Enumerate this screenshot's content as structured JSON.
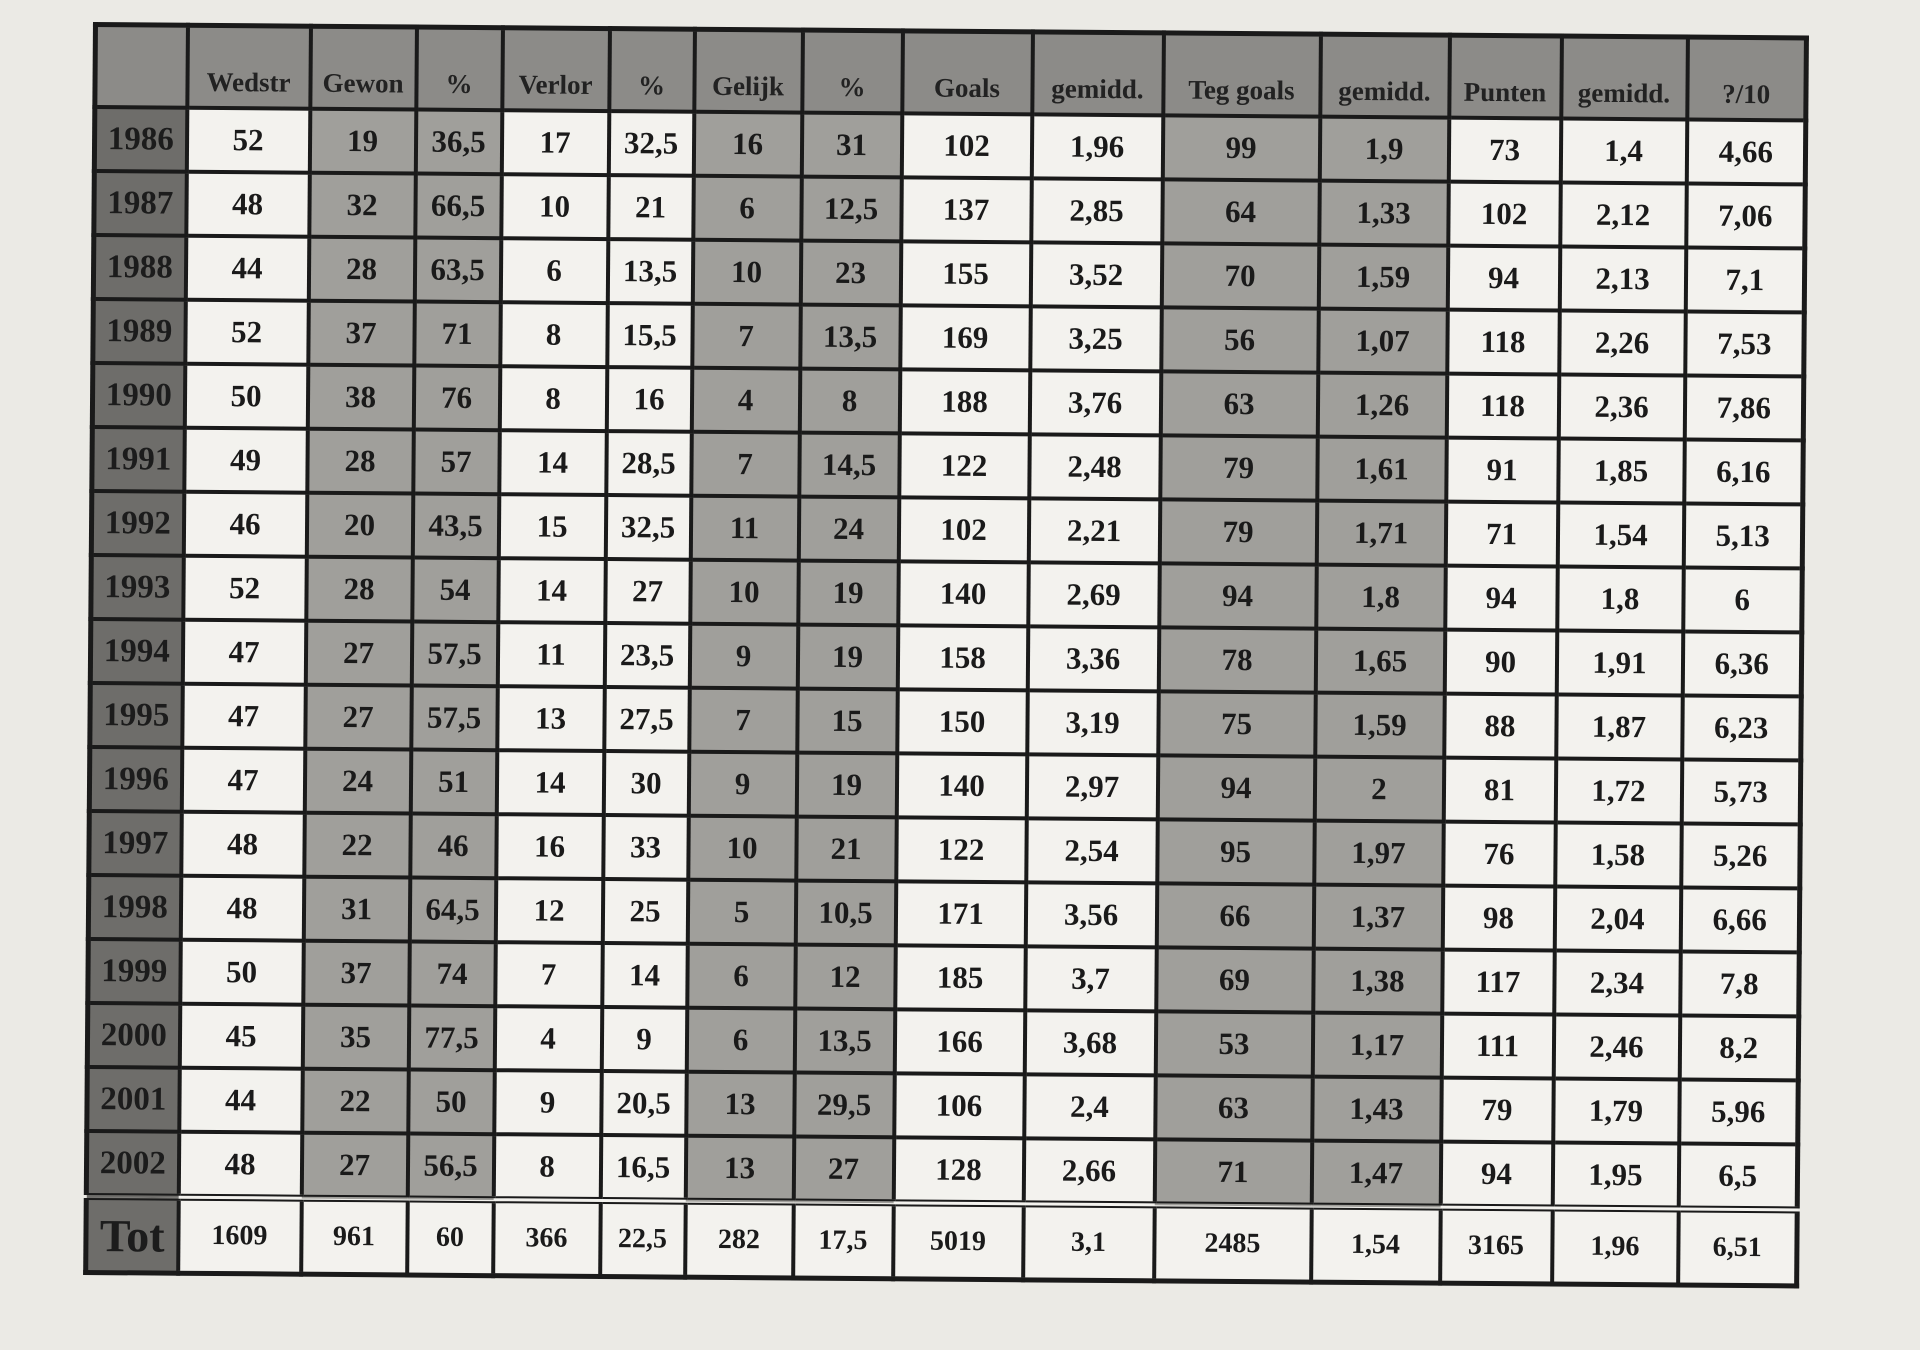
{
  "table": {
    "headers": [
      "",
      "Wedstr",
      "Gewon",
      "%",
      "Verlor",
      "%",
      "Gelijk",
      "%",
      "Goals",
      "gemidd.",
      "Teg goals",
      "gemidd.",
      "Punten",
      "gemidd.",
      "?/10"
    ],
    "rows": [
      [
        "1986",
        "52",
        "19",
        "36,5",
        "17",
        "32,5",
        "16",
        "31",
        "102",
        "1,96",
        "99",
        "1,9",
        "73",
        "1,4",
        "4,66"
      ],
      [
        "1987",
        "48",
        "32",
        "66,5",
        "10",
        "21",
        "6",
        "12,5",
        "137",
        "2,85",
        "64",
        "1,33",
        "102",
        "2,12",
        "7,06"
      ],
      [
        "1988",
        "44",
        "28",
        "63,5",
        "6",
        "13,5",
        "10",
        "23",
        "155",
        "3,52",
        "70",
        "1,59",
        "94",
        "2,13",
        "7,1"
      ],
      [
        "1989",
        "52",
        "37",
        "71",
        "8",
        "15,5",
        "7",
        "13,5",
        "169",
        "3,25",
        "56",
        "1,07",
        "118",
        "2,26",
        "7,53"
      ],
      [
        "1990",
        "50",
        "38",
        "76",
        "8",
        "16",
        "4",
        "8",
        "188",
        "3,76",
        "63",
        "1,26",
        "118",
        "2,36",
        "7,86"
      ],
      [
        "1991",
        "49",
        "28",
        "57",
        "14",
        "28,5",
        "7",
        "14,5",
        "122",
        "2,48",
        "79",
        "1,61",
        "91",
        "1,85",
        "6,16"
      ],
      [
        "1992",
        "46",
        "20",
        "43,5",
        "15",
        "32,5",
        "11",
        "24",
        "102",
        "2,21",
        "79",
        "1,71",
        "71",
        "1,54",
        "5,13"
      ],
      [
        "1993",
        "52",
        "28",
        "54",
        "14",
        "27",
        "10",
        "19",
        "140",
        "2,69",
        "94",
        "1,8",
        "94",
        "1,8",
        "6"
      ],
      [
        "1994",
        "47",
        "27",
        "57,5",
        "11",
        "23,5",
        "9",
        "19",
        "158",
        "3,36",
        "78",
        "1,65",
        "90",
        "1,91",
        "6,36"
      ],
      [
        "1995",
        "47",
        "27",
        "57,5",
        "13",
        "27,5",
        "7",
        "15",
        "150",
        "3,19",
        "75",
        "1,59",
        "88",
        "1,87",
        "6,23"
      ],
      [
        "1996",
        "47",
        "24",
        "51",
        "14",
        "30",
        "9",
        "19",
        "140",
        "2,97",
        "94",
        "2",
        "81",
        "1,72",
        "5,73"
      ],
      [
        "1997",
        "48",
        "22",
        "46",
        "16",
        "33",
        "10",
        "21",
        "122",
        "2,54",
        "95",
        "1,97",
        "76",
        "1,58",
        "5,26"
      ],
      [
        "1998",
        "48",
        "31",
        "64,5",
        "12",
        "25",
        "5",
        "10,5",
        "171",
        "3,56",
        "66",
        "1,37",
        "98",
        "2,04",
        "6,66"
      ],
      [
        "1999",
        "50",
        "37",
        "74",
        "7",
        "14",
        "6",
        "12",
        "185",
        "3,7",
        "69",
        "1,38",
        "117",
        "2,34",
        "7,8"
      ],
      [
        "2000",
        "45",
        "35",
        "77,5",
        "4",
        "9",
        "6",
        "13,5",
        "166",
        "3,68",
        "53",
        "1,17",
        "111",
        "2,46",
        "8,2"
      ],
      [
        "2001",
        "44",
        "22",
        "50",
        "9",
        "20,5",
        "13",
        "29,5",
        "106",
        "2,4",
        "63",
        "1,43",
        "79",
        "1,79",
        "5,96"
      ],
      [
        "2002",
        "48",
        "27",
        "56,5",
        "8",
        "16,5",
        "13",
        "27",
        "128",
        "2,66",
        "71",
        "1,47",
        "94",
        "1,95",
        "6,5"
      ]
    ],
    "total": [
      "Tot",
      "1609",
      "961",
      "60",
      "366",
      "22,5",
      "282",
      "17,5",
      "5019",
      "3,1",
      "2485",
      "1,54",
      "3165",
      "1,96",
      "6,51"
    ]
  },
  "colors": {
    "paper": "#ebeae5",
    "year_cells": "#6e6d6a",
    "header_cells": "#8c8b88",
    "shaded_cells": "#a09f9b",
    "white_cells": "#f3f2ee",
    "lines": "#1a1a1a"
  }
}
